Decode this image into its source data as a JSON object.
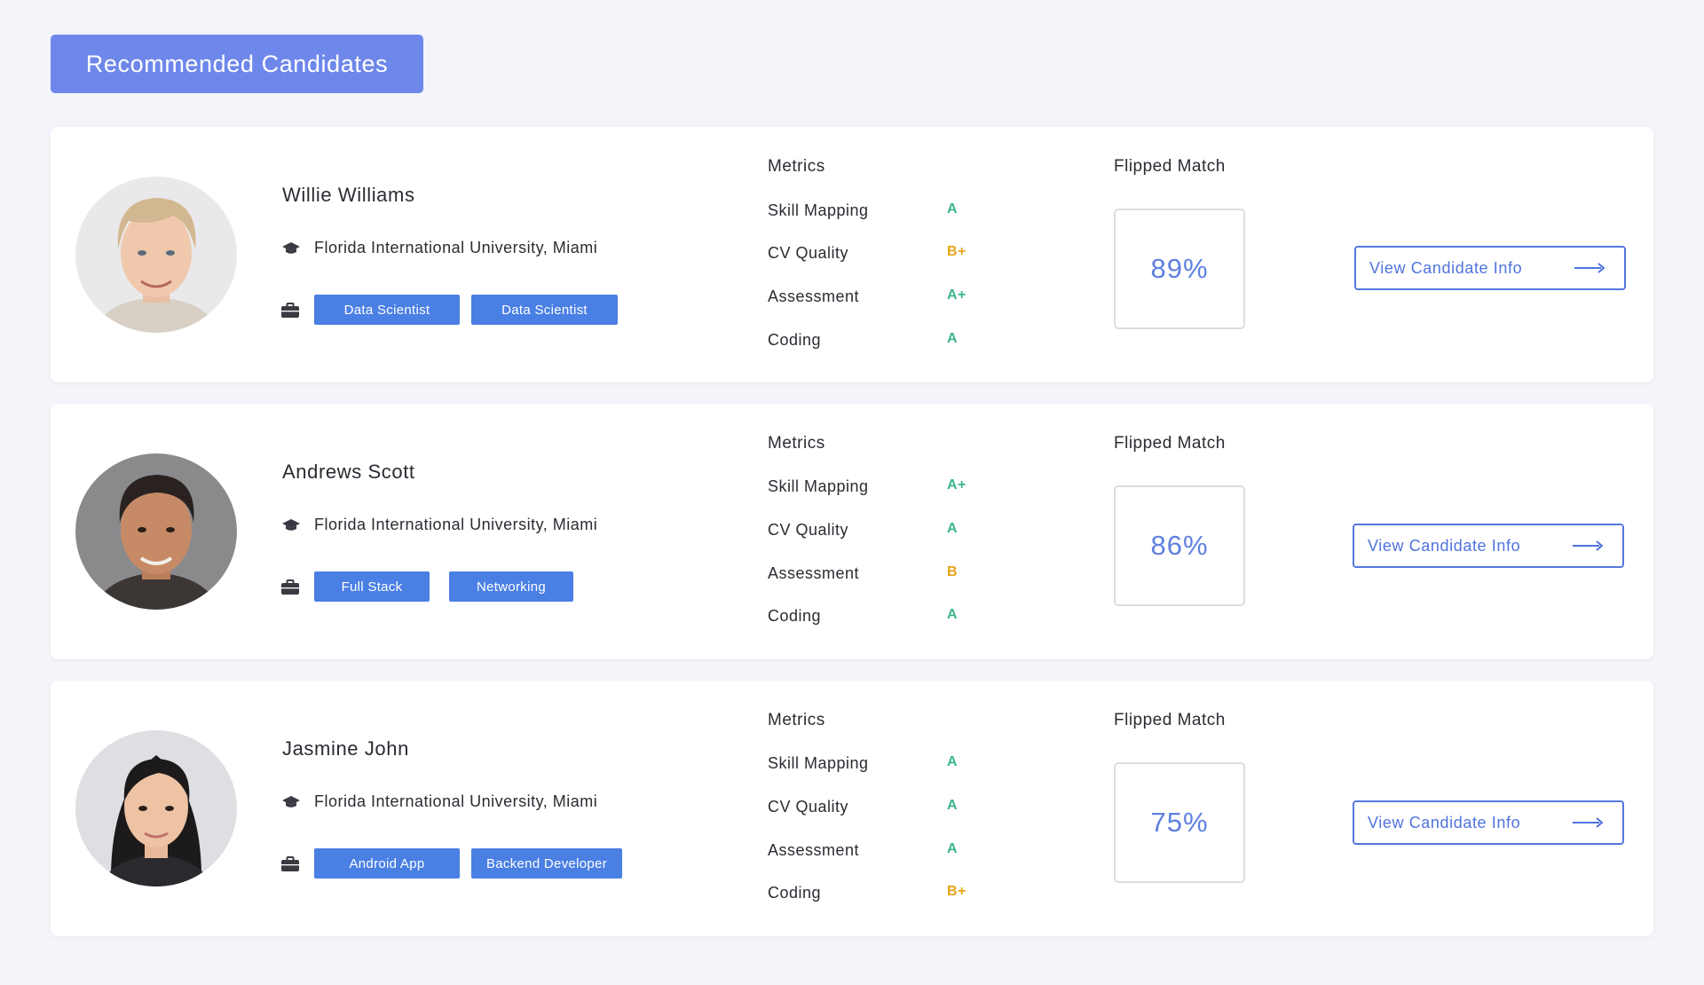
{
  "header": {
    "title": "Recommended Candidates"
  },
  "labels": {
    "metrics_heading": "Metrics",
    "match_heading": "Flipped Match",
    "view_button": "View Candidate Info"
  },
  "colors": {
    "accent": "#6e87ea",
    "tag": "#4a7fe4",
    "grade_good": "#3bb58c",
    "grade_mid": "#e7a516"
  },
  "candidates": [
    {
      "name": "Willie Williams",
      "education": "Florida International University, Miami",
      "tags": [
        "Data Scientist",
        "Data Scientist"
      ],
      "metrics": [
        {
          "label": "Skill Mapping",
          "grade": "A"
        },
        {
          "label": "CV Quality",
          "grade": "B+"
        },
        {
          "label": "Assessment",
          "grade": "A+"
        },
        {
          "label": "Coding",
          "grade": "A"
        }
      ],
      "match": "89%"
    },
    {
      "name": "Andrews Scott",
      "education": "Florida International University, Miami",
      "tags": [
        "Full Stack",
        "Networking"
      ],
      "metrics": [
        {
          "label": "Skill Mapping",
          "grade": "A+"
        },
        {
          "label": "CV Quality",
          "grade": "A"
        },
        {
          "label": "Assessment",
          "grade": "B"
        },
        {
          "label": "Coding",
          "grade": "A"
        }
      ],
      "match": "86%"
    },
    {
      "name": "Jasmine John",
      "education": "Florida International University, Miami",
      "tags": [
        "Android App",
        "Backend Developer"
      ],
      "metrics": [
        {
          "label": "Skill Mapping",
          "grade": "A"
        },
        {
          "label": "CV Quality",
          "grade": "A"
        },
        {
          "label": "Assessment",
          "grade": "A"
        },
        {
          "label": "Coding",
          "grade": "B+"
        }
      ],
      "match": "75%"
    }
  ]
}
